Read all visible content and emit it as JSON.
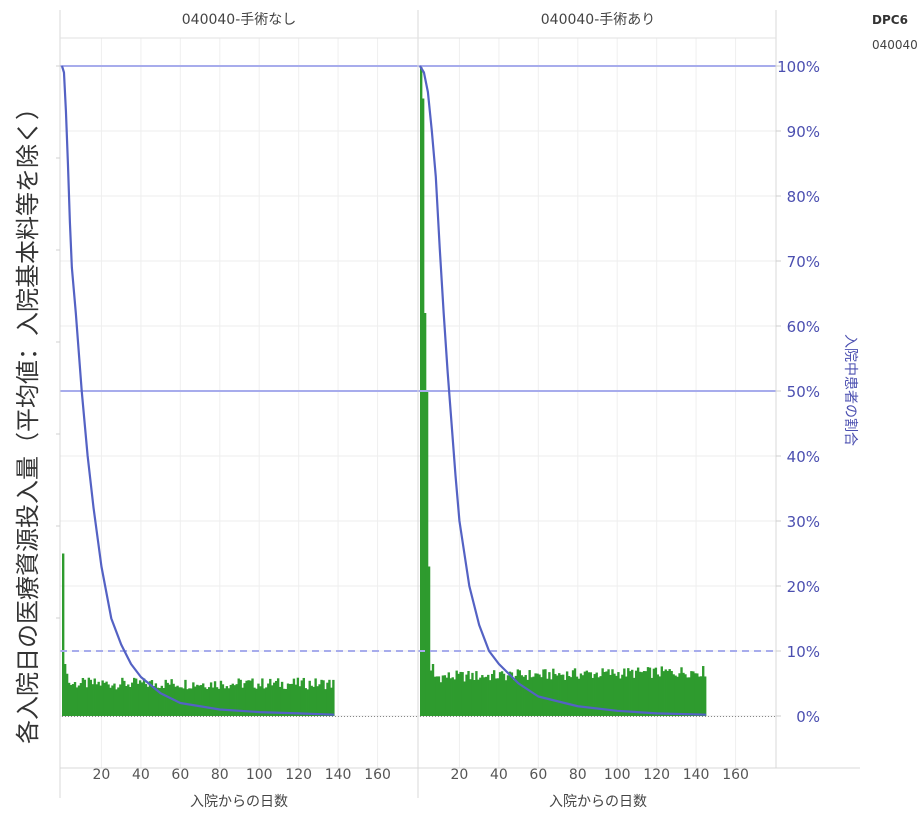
{
  "legend": {
    "header": "DPC6",
    "value": "040040"
  },
  "chart_data": {
    "type": "bar+line",
    "panels": [
      {
        "title": "040040-手術なし",
        "days": 138,
        "bar_first": [
          0.25,
          0.08,
          0.065
        ],
        "bar_base": 0.05,
        "curve": [
          [
            0,
            1
          ],
          [
            1,
            0.99
          ],
          [
            2,
            0.93
          ],
          [
            3,
            0.85
          ],
          [
            4,
            0.76
          ],
          [
            5,
            0.69
          ],
          [
            7,
            0.62
          ],
          [
            10,
            0.5
          ],
          [
            13,
            0.4
          ],
          [
            16,
            0.32
          ],
          [
            20,
            0.23
          ],
          [
            25,
            0.15
          ],
          [
            30,
            0.11
          ],
          [
            35,
            0.08
          ],
          [
            40,
            0.06
          ],
          [
            50,
            0.035
          ],
          [
            60,
            0.02
          ],
          [
            80,
            0.01
          ],
          [
            100,
            0.006
          ],
          [
            120,
            0.004
          ],
          [
            138,
            0.002
          ]
        ]
      },
      {
        "title": "040040-手術あり",
        "days": 145,
        "bar_first": [
          1.0,
          0.95,
          0.62,
          0.5,
          0.23,
          0.07,
          0.08
        ],
        "bar_base": 0.06,
        "curve": [
          [
            0,
            1
          ],
          [
            2,
            0.99
          ],
          [
            4,
            0.96
          ],
          [
            6,
            0.9
          ],
          [
            8,
            0.83
          ],
          [
            10,
            0.72
          ],
          [
            12,
            0.62
          ],
          [
            14,
            0.53
          ],
          [
            16,
            0.45
          ],
          [
            18,
            0.37
          ],
          [
            20,
            0.3
          ],
          [
            25,
            0.2
          ],
          [
            30,
            0.14
          ],
          [
            35,
            0.1
          ],
          [
            40,
            0.08
          ],
          [
            50,
            0.05
          ],
          [
            60,
            0.03
          ],
          [
            80,
            0.015
          ],
          [
            100,
            0.008
          ],
          [
            120,
            0.004
          ],
          [
            145,
            0.002
          ]
        ]
      }
    ],
    "x_ticks": [
      20,
      40,
      60,
      80,
      100,
      120,
      140,
      160
    ],
    "x_range": [
      0,
      180
    ],
    "xlabel": "入院からの日数",
    "ylabel": "各入院日の医療資源投入量（平均値：入院基本料等を除く）",
    "y2label": "入院中患者の割合",
    "y2_ticks": [
      "100%",
      "90%",
      "80%",
      "70%",
      "60%",
      "50%",
      "40%",
      "30%",
      "20%",
      "10%",
      "0%"
    ],
    "y2_range": [
      0,
      1
    ],
    "reference_lines": [
      {
        "value": 1.0,
        "style": "solid"
      },
      {
        "value": 0.5,
        "style": "solid"
      },
      {
        "value": 0.1,
        "style": "dashed"
      }
    ],
    "colors": {
      "bar": "#2e9b2e",
      "curve": "#5462c4",
      "ref": "#a7acec",
      "axis_text": "#4b4fb0"
    }
  }
}
